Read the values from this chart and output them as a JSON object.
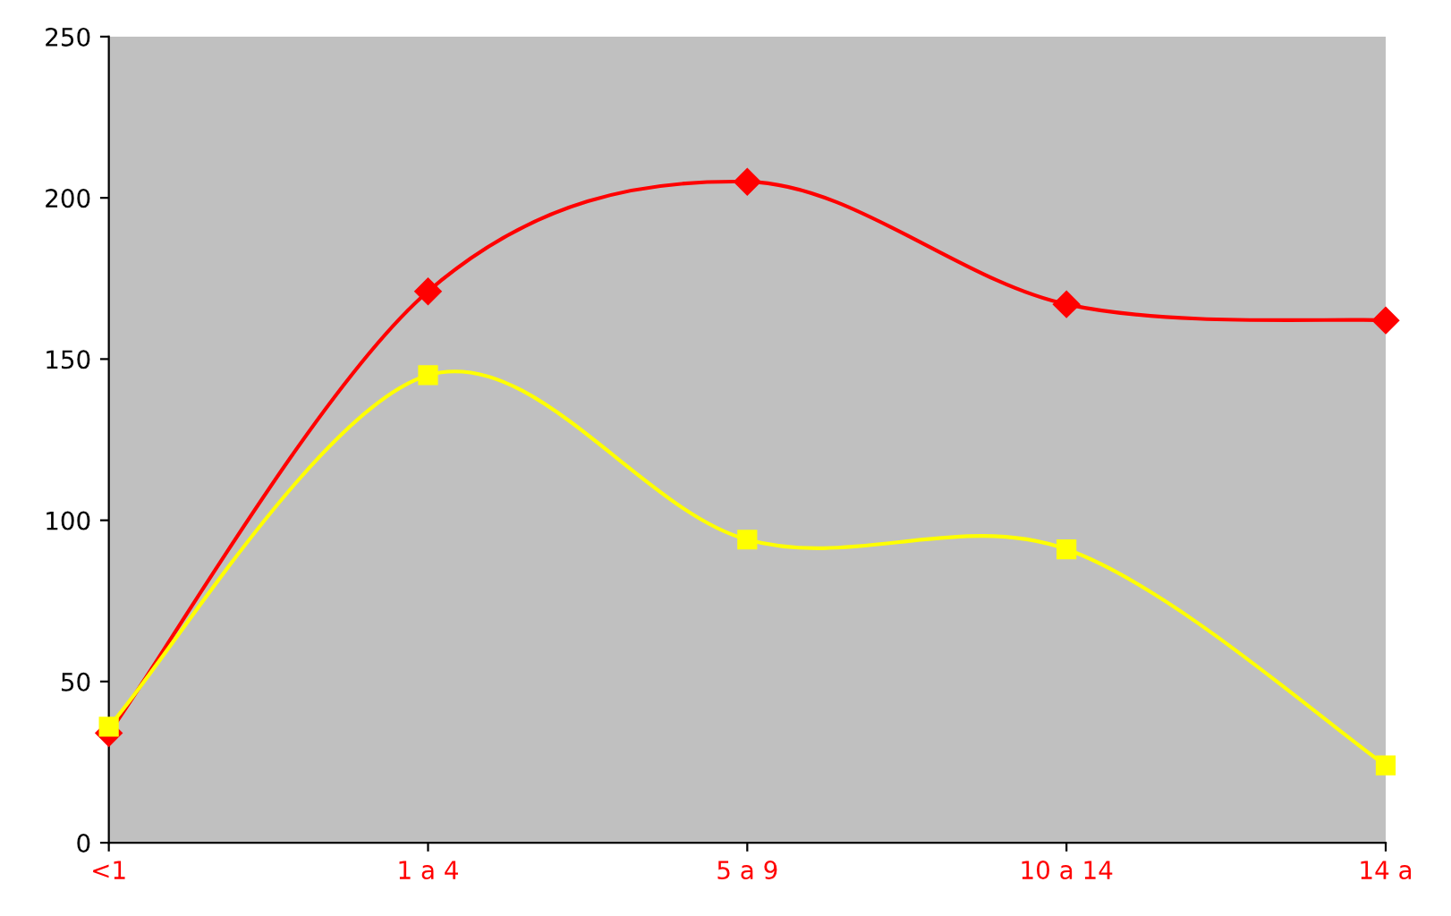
{
  "chart_data": {
    "type": "line",
    "categories": [
      "<1",
      "1 a 4",
      "5 a 9",
      "10 a 14",
      "14 a"
    ],
    "series": [
      {
        "color": "#ff0000",
        "marker": "diamond",
        "values": [
          34,
          171,
          205,
          167,
          162
        ]
      },
      {
        "color": "#ffff00",
        "marker": "square",
        "values": [
          36,
          145,
          94,
          91,
          24
        ]
      }
    ],
    "ylim": [
      0,
      250
    ],
    "yticks": [
      0,
      50,
      100,
      150,
      200,
      250
    ],
    "grid": false,
    "legend": false
  }
}
